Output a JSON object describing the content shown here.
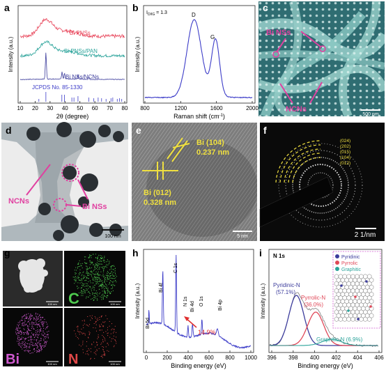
{
  "panels": {
    "a": {
      "letter": "a",
      "ylabel": "Intensity (a.u.)",
      "xlabel": "2θ (degree)",
      "ticks": [
        "10",
        "20",
        "30",
        "40",
        "50",
        "60",
        "70",
        "80"
      ],
      "labels": [
        "Bi PNSs",
        "Bi PNSs/PAN",
        "Bi NSs/NCNs",
        "JCPDS No. 85-1330"
      ],
      "colors": {
        "pns": "#e8455a",
        "pan": "#2aa39a",
        "ncn": "#3c3c9c",
        "ref": "#3c3cc8"
      }
    },
    "b": {
      "letter": "b",
      "ratio": "I",
      "ratio_rest": "D/I",
      "ratio_g": "G",
      "ratio_val": " = 1.3",
      "ylabel": "Intensity (a.u.)",
      "xlabel": "Raman shift (cm",
      "xlabel_sup": "-1",
      "xlabel_end": ")",
      "peaks": [
        "D",
        "G"
      ],
      "ticks": [
        "800",
        "1200",
        "1600",
        "2000"
      ],
      "color": "#3c3cc8"
    },
    "c": {
      "letter": "c",
      "label_top": "Bi NSs",
      "label_bottom": "NCNs",
      "scale": "500 nm",
      "accent": "#e040a0"
    },
    "d": {
      "letter": "d",
      "label_left": "NCNs",
      "label_right": "Bi NSs",
      "scale": "100 nm"
    },
    "e": {
      "letter": "e",
      "fringe1": "Bi (104)",
      "d1": "0.237 nm",
      "fringe2": "Bi (012)",
      "d2": "0.328 nm",
      "scale": "5 nm",
      "accent": "#f0e040"
    },
    "f": {
      "letter": "f",
      "rings": [
        "(024)",
        "(202)",
        "(015)",
        "(104)",
        "(012)"
      ],
      "scale": "2 1/nm"
    },
    "g": {
      "letter": "g",
      "tiles": [
        "C",
        "Bi",
        "N"
      ],
      "scale": "100 nm",
      "tile_colors": {
        "C": "#4ec94e",
        "Bi": "#d05ad0",
        "N": "#e04848"
      }
    },
    "h": {
      "letter": "h",
      "ylabel": "Intensity (a.u.)",
      "xlabel": "Binding energy (eV)",
      "ticks": [
        "0",
        "200",
        "400",
        "600",
        "800",
        "1000"
      ],
      "peaks": [
        "Bi 5d",
        "Bi 4f",
        "C 1s",
        "N 1s",
        "Bi 4d",
        "O 1s",
        "Bi 4p"
      ],
      "annotation": "14.9%",
      "color": "#3c3cc8"
    },
    "i": {
      "letter": "i",
      "title": "N 1s",
      "ylabel": "Intensity (a.u.)",
      "xlabel": "Binding energy (eV)",
      "ticks": [
        "396",
        "398",
        "400",
        "402",
        "404",
        "406"
      ],
      "components": [
        "Pyridinic-N",
        "(57.1%)",
        "Pyrrolic-N",
        "(36.0%)",
        "Graphitic-N (6.9%)"
      ],
      "legend": [
        "Pyridinic",
        "Pyrrolic",
        "Graphitic"
      ],
      "colors": {
        "pyridinic": "#3c3c9c",
        "pyrrolic": "#e04858",
        "graphitic": "#2aa39a"
      }
    }
  }
}
